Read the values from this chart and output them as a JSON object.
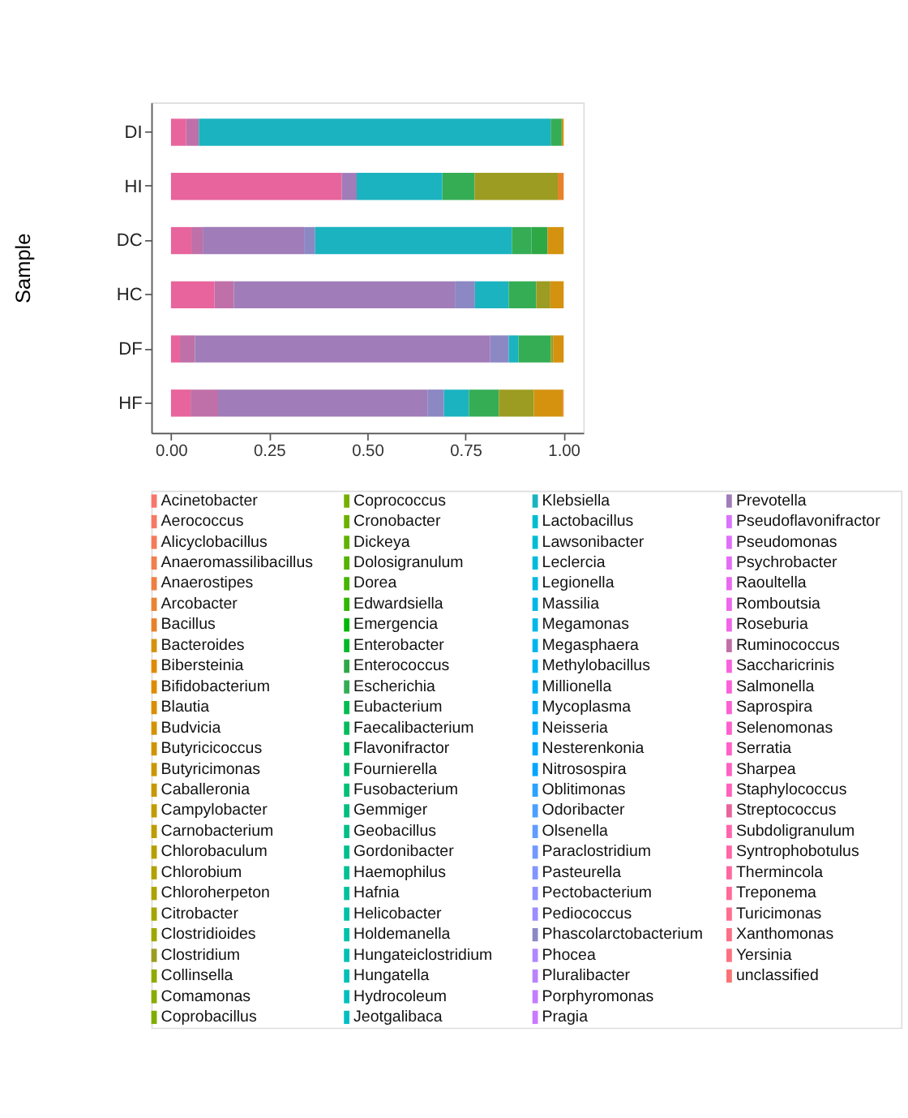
{
  "chart_data": {
    "type": "bar",
    "orientation": "horizontal",
    "stacked": true,
    "ylabel": "Sample",
    "legend": "bottom",
    "grid": false,
    "categories": [
      "DI",
      "HI",
      "DC",
      "HC",
      "DF",
      "HF"
    ],
    "xlim": [
      -0.05,
      1.05
    ],
    "xticks": [
      {
        "value": 0,
        "label": "0.00"
      },
      {
        "value": 0.25,
        "label": "0.25"
      },
      {
        "value": 0.5,
        "label": "0.50"
      },
      {
        "value": 0.75,
        "label": "0.75"
      },
      {
        "value": 1,
        "label": "1.00"
      }
    ],
    "series": [
      {
        "name": "unclassified",
        "color": "#fa7476",
        "values": [
          null,
          null,
          null,
          null,
          null,
          null
        ]
      },
      {
        "name": "Yersinia",
        "color": "#fc717f",
        "values": [
          null,
          null,
          null,
          null,
          null,
          null
        ]
      },
      {
        "name": "Xanthomonas",
        "color": "#fd6f87",
        "values": [
          null,
          null,
          null,
          null,
          null,
          null
        ]
      },
      {
        "name": "Turicimonas",
        "color": "#ff6d8f",
        "values": [
          null,
          null,
          null,
          null,
          null,
          null
        ]
      },
      {
        "name": "Treponema",
        "color": "#ff6a97",
        "values": [
          null,
          null,
          null,
          null,
          null,
          null
        ]
      },
      {
        "name": "Thermincola",
        "color": "#ff689e",
        "values": [
          null,
          null,
          null,
          null,
          null,
          null
        ]
      },
      {
        "name": "Syntrophobotulus",
        "color": "#ff67a6",
        "values": [
          null,
          null,
          null,
          null,
          null,
          null
        ]
      },
      {
        "name": "Subdoligranulum",
        "color": "#ff65ad",
        "values": [
          null,
          null,
          null,
          null,
          null,
          null
        ]
      },
      {
        "name": "Streptococcus",
        "color": "#e8649c",
        "values": [
          0.038,
          0.435,
          0.052,
          0.111,
          0.023,
          0.05
        ]
      },
      {
        "name": "Staphylococcus",
        "color": "#ff62ba",
        "values": [
          null,
          null,
          null,
          null,
          null,
          null
        ]
      },
      {
        "name": "Sharpea",
        "color": "#ff61c1",
        "values": [
          null,
          null,
          null,
          null,
          null,
          null
        ]
      },
      {
        "name": "Serratia",
        "color": "#ff61c7",
        "values": [
          null,
          null,
          null,
          null,
          null,
          null
        ]
      },
      {
        "name": "Selenomonas",
        "color": "#fe61cd",
        "values": [
          null,
          null,
          null,
          null,
          null,
          null
        ]
      },
      {
        "name": "Saprospira",
        "color": "#fc61d3",
        "values": [
          null,
          null,
          null,
          null,
          null,
          null
        ]
      },
      {
        "name": "Salmonella",
        "color": "#fa62d9",
        "values": [
          null,
          null,
          null,
          null,
          null,
          null
        ]
      },
      {
        "name": "Saccharicrinis",
        "color": "#f863de",
        "values": [
          null,
          null,
          null,
          null,
          null,
          null
        ]
      },
      {
        "name": "Ruminococcus",
        "color": "#c070a8",
        "values": [
          0.033,
          null,
          0.029,
          0.049,
          0.038,
          0.07
        ]
      },
      {
        "name": "Roseburia",
        "color": "#f166e8",
        "values": [
          null,
          null,
          null,
          null,
          null,
          null
        ]
      },
      {
        "name": "Romboutsia",
        "color": "#ed68ed",
        "values": [
          null,
          null,
          null,
          null,
          null,
          null
        ]
      },
      {
        "name": "Raoultella",
        "color": "#e96af1",
        "values": [
          null,
          null,
          null,
          null,
          null,
          null
        ]
      },
      {
        "name": "Psychrobacter",
        "color": "#e46df5",
        "values": [
          null,
          null,
          null,
          null,
          null,
          null
        ]
      },
      {
        "name": "Pseudomonas",
        "color": "#df70f9",
        "values": [
          null,
          null,
          null,
          null,
          null,
          null
        ]
      },
      {
        "name": "Pseudoflavonifractor",
        "color": "#d973fc",
        "values": [
          null,
          null,
          null,
          null,
          null,
          null
        ]
      },
      {
        "name": "Prevotella",
        "color": "#a07cb8",
        "values": [
          null,
          0.038,
          0.258,
          0.563,
          0.752,
          0.533
        ]
      },
      {
        "name": "Pragia",
        "color": "#cb7aff",
        "values": [
          null,
          null,
          null,
          null,
          null,
          null
        ]
      },
      {
        "name": "Porphyromonas",
        "color": "#c37eff",
        "values": [
          null,
          null,
          null,
          null,
          null,
          null
        ]
      },
      {
        "name": "Pluralibacter",
        "color": "#ba82ff",
        "values": [
          null,
          null,
          null,
          null,
          null,
          null
        ]
      },
      {
        "name": "Phocea",
        "color": "#b186ff",
        "values": [
          null,
          null,
          null,
          null,
          null,
          null
        ]
      },
      {
        "name": "Phascolarctobacterium",
        "color": "#8c88c4",
        "values": [
          null,
          null,
          0.028,
          0.051,
          0.047,
          0.042
        ]
      },
      {
        "name": "Pediococcus",
        "color": "#9c8dff",
        "values": [
          null,
          null,
          null,
          null,
          null,
          null
        ]
      },
      {
        "name": "Pectobacterium",
        "color": "#9091ff",
        "values": [
          null,
          null,
          null,
          null,
          null,
          null
        ]
      },
      {
        "name": "Pasteurella",
        "color": "#8295ff",
        "values": [
          null,
          null,
          null,
          null,
          null,
          null
        ]
      },
      {
        "name": "Paraclostridium",
        "color": "#7398ff",
        "values": [
          null,
          null,
          null,
          null,
          null,
          null
        ]
      },
      {
        "name": "Olsenella",
        "color": "#619cff",
        "values": [
          null,
          null,
          null,
          null,
          null,
          null
        ]
      },
      {
        "name": "Odoribacter",
        "color": "#4b9fff",
        "values": [
          null,
          null,
          null,
          null,
          null,
          null
        ]
      },
      {
        "name": "Oblitimonas",
        "color": "#29a3ff",
        "values": [
          null,
          null,
          null,
          null,
          null,
          null
        ]
      },
      {
        "name": "Nitrosospira",
        "color": "#00a6ff",
        "values": [
          null,
          null,
          null,
          null,
          null,
          null
        ]
      },
      {
        "name": "Nesterenkonia",
        "color": "#00a9ff",
        "values": [
          null,
          null,
          null,
          null,
          null,
          null
        ]
      },
      {
        "name": "Neisseria",
        "color": "#00abfc",
        "values": [
          null,
          null,
          null,
          null,
          null,
          null
        ]
      },
      {
        "name": "Mycoplasma",
        "color": "#00aef9",
        "values": [
          null,
          null,
          null,
          null,
          null,
          null
        ]
      },
      {
        "name": "Millionella",
        "color": "#00b0f6",
        "values": [
          null,
          null,
          null,
          null,
          null,
          null
        ]
      },
      {
        "name": "Methylobacillus",
        "color": "#00b3f2",
        "values": [
          null,
          null,
          null,
          null,
          null,
          null
        ]
      },
      {
        "name": "Megasphaera",
        "color": "#00b5ee",
        "values": [
          null,
          null,
          null,
          null,
          null,
          null
        ]
      },
      {
        "name": "Megamonas",
        "color": "#00b7e9",
        "values": [
          null,
          null,
          null,
          null,
          null,
          null
        ]
      },
      {
        "name": "Massilia",
        "color": "#00b8e5",
        "values": [
          null,
          null,
          null,
          null,
          null,
          null
        ]
      },
      {
        "name": "Legionella",
        "color": "#00bae0",
        "values": [
          null,
          null,
          null,
          null,
          null,
          null
        ]
      },
      {
        "name": "Leclercia",
        "color": "#00bbdb",
        "values": [
          null,
          null,
          null,
          null,
          null,
          null
        ]
      },
      {
        "name": "Lawsonibacter",
        "color": "#00bcd6",
        "values": [
          null,
          null,
          null,
          null,
          null,
          null
        ]
      },
      {
        "name": "Lactobacillus",
        "color": "#00bdd0",
        "values": [
          null,
          null,
          null,
          null,
          null,
          null
        ]
      },
      {
        "name": "Klebsiella",
        "color": "#1bb3c0",
        "values": [
          0.896,
          0.218,
          0.501,
          0.086,
          0.025,
          0.064
        ]
      },
      {
        "name": "Jeotgalibaca",
        "color": "#00bfc4",
        "values": [
          null,
          null,
          null,
          null,
          null,
          null
        ]
      },
      {
        "name": "Hydrocoleum",
        "color": "#00c0be",
        "values": [
          null,
          null,
          null,
          null,
          null,
          null
        ]
      },
      {
        "name": "Hungatella",
        "color": "#00c0b8",
        "values": [
          null,
          null,
          null,
          null,
          null,
          null
        ]
      },
      {
        "name": "Hungateiclostridium",
        "color": "#00c0b2",
        "values": [
          null,
          null,
          null,
          null,
          null,
          null
        ]
      },
      {
        "name": "Holdemanella",
        "color": "#00c1ab",
        "values": [
          null,
          null,
          null,
          null,
          null,
          null
        ]
      },
      {
        "name": "Helicobacter",
        "color": "#00c1a4",
        "values": [
          null,
          null,
          null,
          null,
          null,
          null
        ]
      },
      {
        "name": "Hafnia",
        "color": "#00c19d",
        "values": [
          null,
          null,
          null,
          null,
          null,
          null
        ]
      },
      {
        "name": "Haemophilus",
        "color": "#00c096",
        "values": [
          null,
          null,
          null,
          null,
          null,
          null
        ]
      },
      {
        "name": "Gordonibacter",
        "color": "#00c08e",
        "values": [
          null,
          null,
          null,
          null,
          null,
          null
        ]
      },
      {
        "name": "Geobacillus",
        "color": "#00c087",
        "values": [
          null,
          null,
          null,
          null,
          null,
          null
        ]
      },
      {
        "name": "Gemmiger",
        "color": "#00bf7f",
        "values": [
          null,
          null,
          null,
          null,
          null,
          null
        ]
      },
      {
        "name": "Fusobacterium",
        "color": "#00bf77",
        "values": [
          null,
          null,
          null,
          null,
          null,
          null
        ]
      },
      {
        "name": "Fournierella",
        "color": "#00be6e",
        "values": [
          null,
          null,
          null,
          null,
          null,
          null
        ]
      },
      {
        "name": "Flavonifractor",
        "color": "#00bd65",
        "values": [
          null,
          null,
          null,
          null,
          null,
          null
        ]
      },
      {
        "name": "Faecalibacterium",
        "color": "#00bd5c",
        "values": [
          null,
          null,
          null,
          null,
          null,
          null
        ]
      },
      {
        "name": "Eubacterium",
        "color": "#00bc51",
        "values": [
          null,
          null,
          null,
          null,
          null,
          null
        ]
      },
      {
        "name": "Escherichia",
        "color": "#35ad55",
        "values": [
          0.028,
          0.082,
          0.05,
          0.07,
          0.082,
          0.076
        ]
      },
      {
        "name": "Enterococcus",
        "color": "#2ea845",
        "values": [
          null,
          null,
          0.041,
          null,
          null,
          null
        ]
      },
      {
        "name": "Enterobacter",
        "color": "#00b927",
        "values": [
          null,
          null,
          null,
          null,
          null,
          null
        ]
      },
      {
        "name": "Emergencia",
        "color": "#00b709",
        "values": [
          null,
          null,
          null,
          null,
          null,
          null
        ]
      },
      {
        "name": "Edwardsiella",
        "color": "#30b600",
        "values": [
          null,
          null,
          null,
          null,
          null,
          null
        ]
      },
      {
        "name": "Dorea",
        "color": "#45b500",
        "values": [
          null,
          null,
          null,
          null,
          null,
          null
        ]
      },
      {
        "name": "Dolosigranulum",
        "color": "#55b300",
        "values": [
          null,
          null,
          null,
          null,
          null,
          null
        ]
      },
      {
        "name": "Dickeya",
        "color": "#62b200",
        "values": [
          null,
          null,
          null,
          null,
          null,
          null
        ]
      },
      {
        "name": "Cronobacter",
        "color": "#6db100",
        "values": [
          null,
          null,
          null,
          null,
          null,
          null
        ]
      },
      {
        "name": "Coprococcus",
        "color": "#77af00",
        "values": [
          null,
          null,
          null,
          null,
          null,
          null
        ]
      },
      {
        "name": "Coprobacillus",
        "color": "#80ad00",
        "values": [
          null,
          null,
          null,
          null,
          null,
          null
        ]
      },
      {
        "name": "Comamonas",
        "color": "#89ac00",
        "values": [
          null,
          null,
          null,
          null,
          null,
          null
        ]
      },
      {
        "name": "Collinsella",
        "color": "#90aa00",
        "values": [
          null,
          null,
          null,
          null,
          null,
          null
        ]
      },
      {
        "name": "Clostridium",
        "color": "#9c9c22",
        "values": [
          null,
          0.212,
          null,
          0.036,
          0.007,
          0.089
        ]
      },
      {
        "name": "Clostridioides",
        "color": "#9fa700",
        "values": [
          null,
          null,
          null,
          null,
          null,
          null
        ]
      },
      {
        "name": "Citrobacter",
        "color": "#a5a500",
        "values": [
          null,
          null,
          null,
          null,
          null,
          null
        ]
      },
      {
        "name": "Chloroherpeton",
        "color": "#aca300",
        "values": [
          null,
          null,
          null,
          null,
          null,
          null
        ]
      },
      {
        "name": "Chlorobium",
        "color": "#b2a100",
        "values": [
          null,
          null,
          null,
          null,
          null,
          null
        ]
      },
      {
        "name": "Chlorobaculum",
        "color": "#b79f00",
        "values": [
          null,
          null,
          null,
          null,
          null,
          null
        ]
      },
      {
        "name": "Carnobacterium",
        "color": "#bd9d00",
        "values": [
          null,
          null,
          null,
          null,
          null,
          null
        ]
      },
      {
        "name": "Campylobacter",
        "color": "#c29b00",
        "values": [
          null,
          null,
          null,
          null,
          null,
          null
        ]
      },
      {
        "name": "Caballeronia",
        "color": "#c79800",
        "values": [
          null,
          null,
          null,
          null,
          null,
          null
        ]
      },
      {
        "name": "Butyricimonas",
        "color": "#cc9600",
        "values": [
          null,
          null,
          null,
          null,
          null,
          null
        ]
      },
      {
        "name": "Butyricicoccus",
        "color": "#d09400",
        "values": [
          null,
          null,
          null,
          null,
          null,
          null
        ]
      },
      {
        "name": "Budvicia",
        "color": "#d49200",
        "values": [
          null,
          null,
          null,
          null,
          null,
          null
        ]
      },
      {
        "name": "Blautia",
        "color": "#d98f00",
        "values": [
          null,
          null,
          null,
          null,
          null,
          null
        ]
      },
      {
        "name": "Bifidobacterium",
        "color": "#dd8d00",
        "values": [
          null,
          null,
          null,
          null,
          null,
          null
        ]
      },
      {
        "name": "Bibersteinia",
        "color": "#e08a00",
        "values": [
          null,
          null,
          null,
          null,
          null,
          null
        ]
      },
      {
        "name": "Bacteroides",
        "color": "#d4920f",
        "values": [
          0.005,
          null,
          0.041,
          0.034,
          0.026,
          0.074
        ]
      },
      {
        "name": "Bacillus",
        "color": "#e8822a",
        "values": [
          null,
          0.015,
          null,
          null,
          null,
          0.002
        ]
      },
      {
        "name": "Arcobacter",
        "color": "#eb8333",
        "values": [
          null,
          null,
          null,
          null,
          null,
          null
        ]
      },
      {
        "name": "Anaerostipes",
        "color": "#ee8042",
        "values": [
          null,
          null,
          null,
          null,
          null,
          null
        ]
      },
      {
        "name": "Anaeromassilibacillus",
        "color": "#f07e4e",
        "values": [
          null,
          null,
          null,
          null,
          null,
          null
        ]
      },
      {
        "name": "Alicyclobacillus",
        "color": "#f37b59",
        "values": [
          null,
          null,
          null,
          null,
          null,
          null
        ]
      },
      {
        "name": "Aerococcus",
        "color": "#f67963",
        "values": [
          null,
          null,
          null,
          null,
          null,
          null
        ]
      },
      {
        "name": "Acinetobacter",
        "color": "#f8766d",
        "values": [
          null,
          null,
          null,
          null,
          null,
          null
        ]
      }
    ]
  }
}
